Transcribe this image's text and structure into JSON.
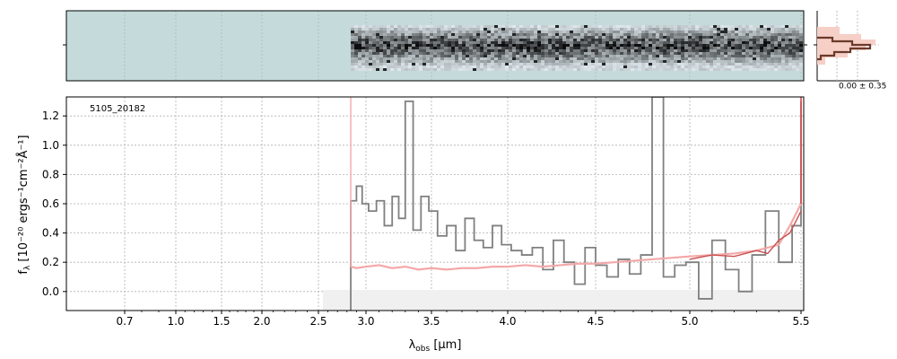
{
  "chart_data": {
    "type": "line",
    "object_label": "5105_20182",
    "xlabel_main": "λ",
    "xlabel_sub": "obs",
    "xlabel_unit": " [μm]",
    "ylabel_main": "f",
    "ylabel_sub": "λ",
    "ylabel_unit": " [10⁻²⁰ ergs⁻¹cm⁻²Å⁻¹]",
    "x_scale": "inverse-square-root-like (labelled in μm)",
    "xlim": [
      0.6,
      5.52
    ],
    "ylim": [
      -0.13,
      1.33
    ],
    "xticks": [
      "0.7",
      "1.0",
      "1.5",
      "2.0",
      "2.5",
      "3.0",
      "3.5",
      "4.0",
      "4.5",
      "5.0",
      "5.5"
    ],
    "yticks": [
      "0.0",
      "0.2",
      "0.4",
      "0.6",
      "0.8",
      "1.0",
      "1.2"
    ],
    "grid": true,
    "hist_label": "0.00 ± 0.35",
    "series": [
      {
        "kind": "observed flux (step)",
        "color": "#808080",
        "x": [
          2.84,
          2.9,
          2.96,
          3.02,
          3.08,
          3.14,
          3.2,
          3.25,
          3.3,
          3.36,
          3.42,
          3.48,
          3.54,
          3.6,
          3.66,
          3.72,
          3.78,
          3.84,
          3.9,
          3.96,
          4.02,
          4.08,
          4.14,
          4.2,
          4.26,
          4.32,
          4.38,
          4.44,
          4.5,
          4.56,
          4.62,
          4.68,
          4.74,
          4.8,
          4.86,
          4.92,
          4.98,
          5.04,
          5.1,
          5.16,
          5.22,
          5.28,
          5.34,
          5.4,
          5.46,
          5.5
        ],
        "y": [
          0.62,
          0.72,
          0.6,
          0.55,
          0.62,
          0.45,
          0.65,
          0.5,
          1.3,
          0.42,
          0.65,
          0.55,
          0.38,
          0.45,
          0.28,
          0.5,
          0.35,
          0.3,
          0.45,
          0.32,
          0.28,
          0.25,
          0.3,
          0.15,
          0.35,
          0.2,
          0.05,
          0.3,
          0.18,
          0.1,
          0.22,
          0.12,
          0.25,
          1.33,
          0.1,
          0.18,
          0.2,
          -0.05,
          0.35,
          0.15,
          0.0,
          0.25,
          0.55,
          0.2,
          0.45,
          1.3
        ]
      },
      {
        "kind": "model (red, light)",
        "color": "#f4a8a8",
        "x": [
          2.84,
          2.9,
          3.0,
          3.1,
          3.2,
          3.3,
          3.4,
          3.5,
          3.6,
          3.7,
          3.8,
          3.9,
          4.0,
          4.1,
          4.2,
          4.3,
          4.4,
          4.5,
          4.6,
          4.7,
          4.8,
          4.9,
          5.0,
          5.1,
          5.2,
          5.3,
          5.4,
          5.45,
          5.5
        ],
        "y": [
          0.17,
          0.16,
          0.17,
          0.18,
          0.16,
          0.17,
          0.15,
          0.16,
          0.15,
          0.16,
          0.16,
          0.17,
          0.17,
          0.18,
          0.17,
          0.18,
          0.19,
          0.19,
          0.2,
          0.21,
          0.22,
          0.23,
          0.24,
          0.25,
          0.26,
          0.28,
          0.32,
          0.45,
          0.6
        ]
      },
      {
        "kind": "model (red, dark)",
        "color": "#c85050",
        "x": [
          5.0,
          5.1,
          5.2,
          5.3,
          5.35,
          5.4,
          5.45,
          5.5
        ],
        "y": [
          0.22,
          0.25,
          0.24,
          0.28,
          0.26,
          0.35,
          0.4,
          0.55
        ]
      }
    ]
  }
}
